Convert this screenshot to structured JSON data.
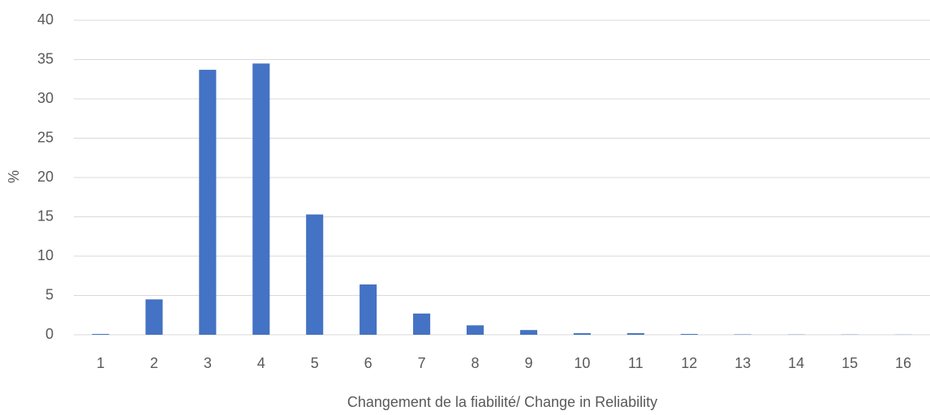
{
  "chart_data": {
    "type": "bar",
    "x_label": "Changement de la fiabilité/ Change in Reliability",
    "y_label": "%",
    "categories": [
      "1",
      "2",
      "3",
      "4",
      "5",
      "6",
      "7",
      "8",
      "9",
      "10",
      "11",
      "12",
      "13",
      "14",
      "15",
      "16"
    ],
    "values": [
      0.1,
      4.5,
      33.7,
      34.5,
      15.3,
      6.4,
      2.7,
      1.2,
      0.6,
      0.2,
      0.2,
      0.1,
      0.05,
      0.03,
      0.03,
      0.02
    ],
    "color": "#4472c4",
    "ylim": [
      0,
      40
    ],
    "yticks": [
      0,
      5,
      10,
      15,
      20,
      25,
      30,
      35,
      40
    ],
    "grid": true
  }
}
